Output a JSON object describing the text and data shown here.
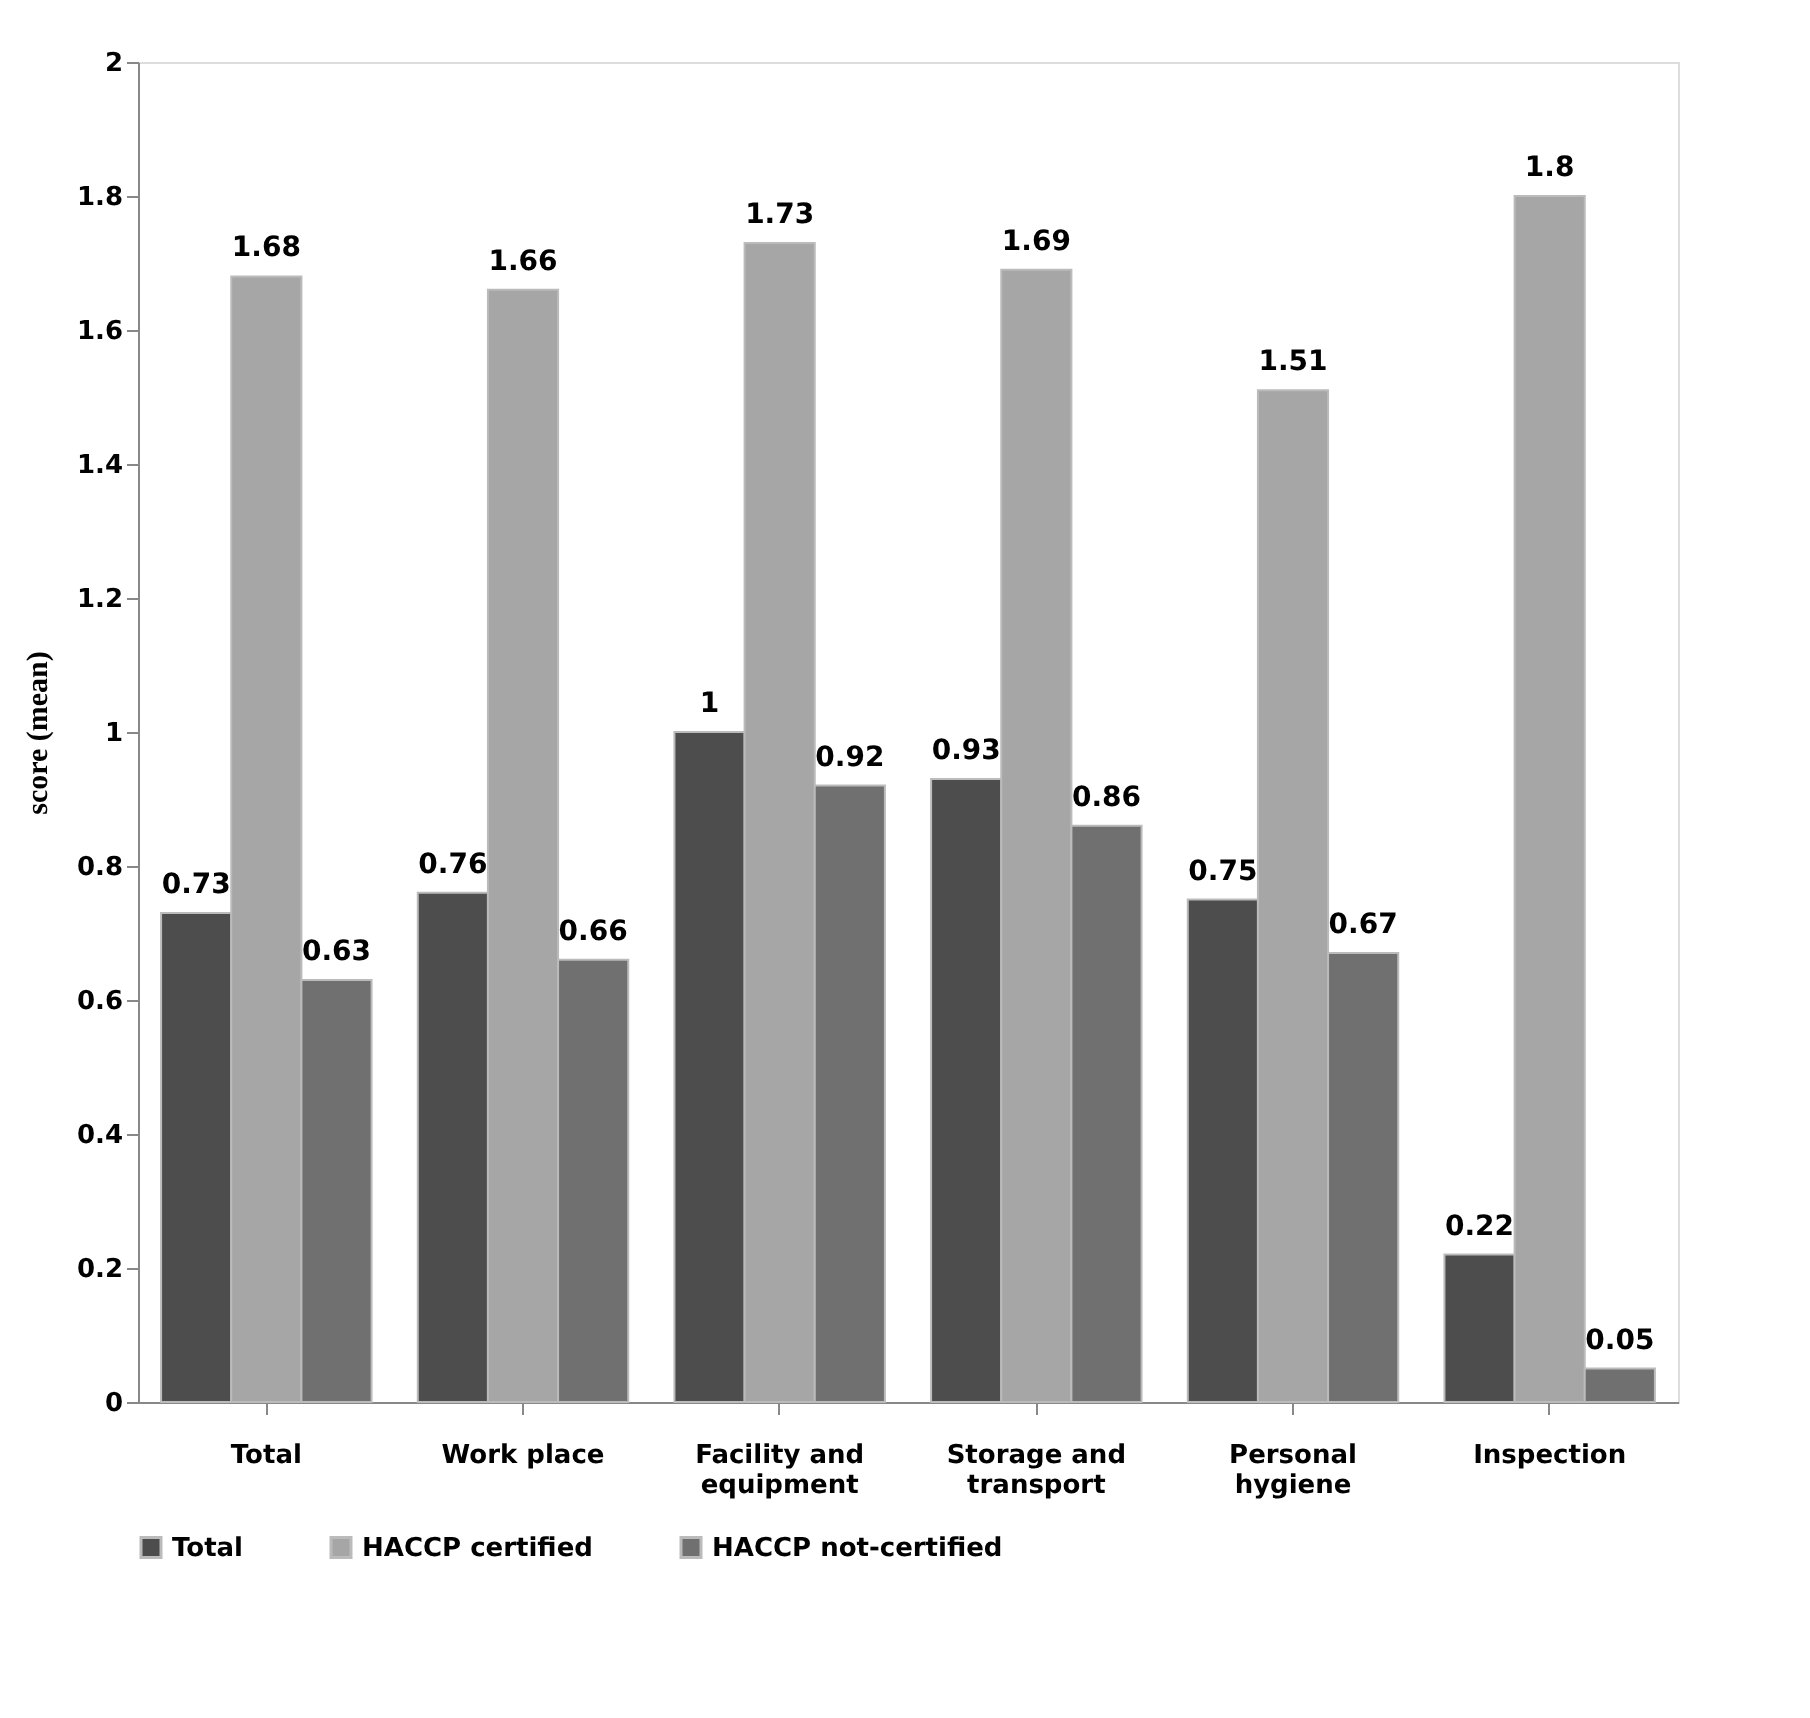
{
  "chart_data": {
    "type": "bar",
    "ylabel": "score (mean)",
    "categories": [
      "Total",
      "Work place",
      "Facility and equipment",
      "Storage and transport",
      "Personal hygiene",
      "Inspection"
    ],
    "series": [
      {
        "name": "Total",
        "color": "#4d4d4d",
        "values": [
          0.73,
          0.76,
          1,
          0.93,
          0.75,
          0.22
        ]
      },
      {
        "name": "HACCP certified",
        "color": "#a6a6a6",
        "values": [
          1.68,
          1.66,
          1.73,
          1.69,
          1.51,
          1.8
        ]
      },
      {
        "name": "HACCP not-certified",
        "color": "#707070",
        "values": [
          0.63,
          0.66,
          0.92,
          0.86,
          0.67,
          0.05
        ]
      }
    ],
    "ylim": [
      0,
      2
    ],
    "yticks": [
      0,
      0.2,
      0.4,
      0.6,
      0.8,
      1,
      1.2,
      1.4,
      1.6,
      1.8,
      2
    ],
    "data_labels": true,
    "grid": false,
    "legend": "bottom"
  }
}
